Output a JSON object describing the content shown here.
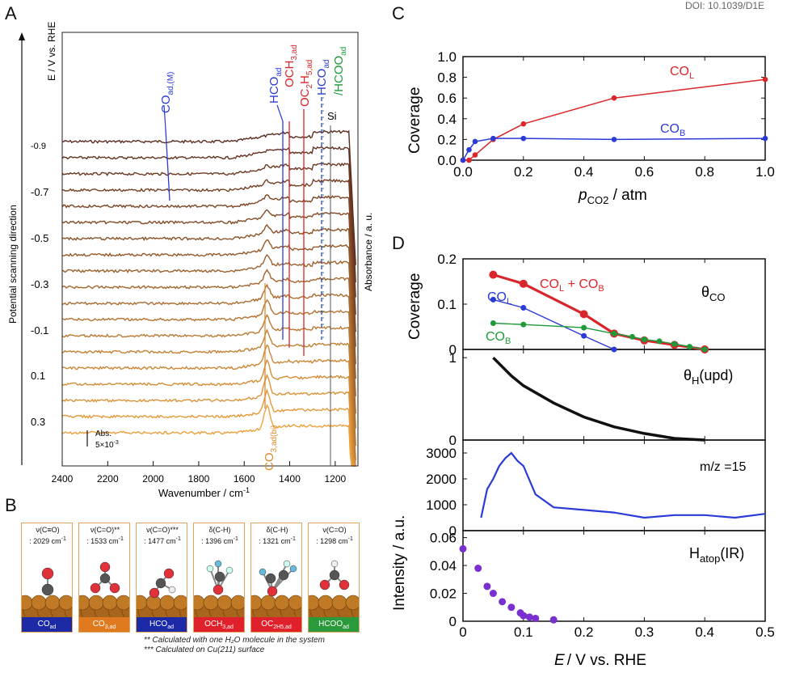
{
  "doi": "DOI: 10.1039/D1E",
  "panel_letters": [
    "A",
    "B",
    "C",
    "D"
  ],
  "colors": {
    "red": "#d9262b",
    "blue": "#2b3bd6",
    "green": "#1f9a3a",
    "purple": "#7a2fd0",
    "orange": "#e08a2c"
  },
  "panelA": {
    "ylabel_left": "E / V vs. RHE",
    "scan_label": "Potential scanning direction",
    "ylabel_right": "Absorbance / a. u.",
    "xlabel": "Wavenumber / cm",
    "xlabel_sup": "-1",
    "potentials": [
      "-0.9",
      "-0.7",
      "-0.5",
      "-0.3",
      "-0.1",
      "0.1",
      "0.3"
    ],
    "scale_bar": {
      "line1": "Abs.",
      "line2": "5×10",
      "line2_sup": "-3"
    },
    "bands": {
      "co": {
        "main": "CO",
        "sub": "ad,(M)"
      },
      "hco1": {
        "main": "HCO",
        "sub": "ad"
      },
      "och3": {
        "main": "OCH",
        "sub1": "3,ad"
      },
      "oc2h5": {
        "main": "OC",
        "sub1": "2",
        "mid": "H",
        "sub2": "5,ad"
      },
      "hco2": {
        "main": "HCO",
        "sub": "ad"
      },
      "hcoo": {
        "main": "/HCOO",
        "sub": "ad"
      },
      "si": "Si",
      "co3": {
        "main": "CO",
        "sub": "3,ad(bi)"
      }
    }
  },
  "panelB": {
    "cards": [
      {
        "vib": "ν(C≡O)",
        "freq": ": 2029 cm",
        "label": "CO",
        "sub": "ad",
        "color": "#1c2aa8"
      },
      {
        "vib": "ν(C=O)**",
        "freq": ": 1533 cm",
        "label": "CO",
        "sub": "3,ad",
        "color": "#e07a1f"
      },
      {
        "vib": "ν(C=O)***",
        "freq": ": 1477 cm",
        "label": "HCO",
        "sub": "ad",
        "color": "#1c2aa8"
      },
      {
        "vib": "δ(C-H)",
        "freq": ": 1396 cm",
        "label": "OCH",
        "sub": "3,ad",
        "color": "#e0202a"
      },
      {
        "vib": "δ(C-H)",
        "freq": ": 1321 cm",
        "label": "OC",
        "sub": "2H5,ad",
        "color": "#e0202a"
      },
      {
        "vib": "ν(C=O)",
        "freq": ": 1298 cm",
        "label": "HCOO",
        "sub": "ad",
        "color": "#2a9a3a"
      }
    ],
    "note1": "** Calculated with one H₂O molecule in the system",
    "note2": "*** Calculated on Cu(211) surface"
  },
  "chart_data": [
    {
      "type": "line",
      "panel": "A",
      "title": "",
      "xlabel": "Wavenumber / cm-1",
      "ylabel": "Absorbance / a. u.",
      "xlim": [
        2400,
        1100
      ],
      "x_ticks": [
        2400,
        2200,
        2000,
        1800,
        1600,
        1400,
        1200
      ],
      "series_count": 19,
      "series_potentials_labeled": [
        "-0.9",
        "-0.7",
        "-0.5",
        "-0.3",
        "-0.1",
        "0.1",
        "0.3"
      ],
      "band_positions_cm": {
        "CO_ad_M": 1950,
        "HCO_ad_1": 1420,
        "OCH3_ad": 1396,
        "OC2H5_ad": 1340,
        "HCO_ad_2": 1260,
        "Si": 1230,
        "CO3_ad_bi": 1500
      }
    },
    {
      "type": "line",
      "panel": "C",
      "xlabel": "p_CO2 / atm",
      "ylabel": "Coverage",
      "xlim": [
        0,
        1.0
      ],
      "ylim": [
        0,
        1.0
      ],
      "x_ticks": [
        "0.0",
        "0.2",
        "0.4",
        "0.6",
        "0.8",
        "1.0"
      ],
      "y_ticks": [
        "0.0",
        "0.2",
        "0.4",
        "0.6",
        "0.8",
        "1.0"
      ],
      "series": [
        {
          "name": "CO_L",
          "label": "CO",
          "sub": "L",
          "color": "#d9262b",
          "x": [
            0.0,
            0.02,
            0.04,
            0.1,
            0.2,
            0.5,
            1.0
          ],
          "values": [
            0.0,
            0.0,
            0.05,
            0.2,
            0.35,
            0.6,
            0.78
          ]
        },
        {
          "name": "CO_B",
          "label": "CO",
          "sub": "B",
          "color": "#2b3bd6",
          "x": [
            0.0,
            0.02,
            0.04,
            0.1,
            0.2,
            0.5,
            1.0
          ],
          "values": [
            0.0,
            0.1,
            0.18,
            0.21,
            0.21,
            0.2,
            0.21
          ]
        }
      ]
    },
    {
      "type": "line",
      "panel": "D1",
      "ylabel": "Coverage",
      "label": "θ",
      "label_sub": "CO",
      "xlim": [
        0,
        0.5
      ],
      "ylim": [
        0,
        0.2
      ],
      "y_ticks": [
        "0.2",
        "0.1",
        "0"
      ],
      "series": [
        {
          "name": "CO_L + CO_B",
          "label": "CO",
          "sub": "L",
          "label2": " + CO",
          "sub2": "B",
          "color": "#d9262b",
          "x": [
            0.05,
            0.1,
            0.2,
            0.25,
            0.3,
            0.35,
            0.4
          ],
          "values": [
            0.165,
            0.145,
            0.078,
            0.035,
            0.02,
            0.01,
            0.0
          ]
        },
        {
          "name": "CO_L",
          "label": "CO",
          "sub": "L",
          "color": "#2b3bd6",
          "x": [
            0.05,
            0.1,
            0.2,
            0.25
          ],
          "values": [
            0.11,
            0.092,
            0.03,
            0.0
          ]
        },
        {
          "name": "CO_B",
          "label": "CO",
          "sub": "B",
          "color": "#1f9a3a",
          "x": [
            0.05,
            0.1,
            0.2,
            0.25,
            0.28,
            0.3,
            0.325,
            0.35,
            0.375,
            0.4
          ],
          "values": [
            0.058,
            0.055,
            0.048,
            0.035,
            0.028,
            0.022,
            0.018,
            0.012,
            0.006,
            0.0
          ]
        }
      ]
    },
    {
      "type": "line",
      "panel": "D2",
      "label": "θ",
      "label_sub": "H",
      "label_suffix": "(upd)",
      "xlim": [
        0,
        0.5
      ],
      "ylim": [
        0,
        1.1
      ],
      "y_ticks": [
        "1",
        "0"
      ],
      "series": [
        {
          "name": "theta_H_upd",
          "color": "#111111",
          "x": [
            0.05,
            0.08,
            0.1,
            0.15,
            0.2,
            0.25,
            0.3,
            0.35,
            0.4
          ],
          "values": [
            1.0,
            0.78,
            0.66,
            0.45,
            0.28,
            0.16,
            0.08,
            0.02,
            0.0
          ]
        }
      ]
    },
    {
      "type": "line",
      "panel": "D3",
      "ylabel": "Intensity / a.u.",
      "label": "m/z =15",
      "xlim": [
        0,
        0.5
      ],
      "ylim": [
        0,
        3500
      ],
      "y_ticks": [
        "3000",
        "2000",
        "1000",
        "0"
      ],
      "series": [
        {
          "name": "m/z=15",
          "color": "#2b3bd6",
          "x": [
            0.03,
            0.04,
            0.05,
            0.06,
            0.07,
            0.08,
            0.09,
            0.1,
            0.12,
            0.15,
            0.2,
            0.25,
            0.3,
            0.35,
            0.4,
            0.45,
            0.5
          ],
          "values": [
            500,
            1600,
            2000,
            2500,
            2800,
            3000,
            2700,
            2500,
            1400,
            900,
            800,
            700,
            500,
            600,
            600,
            500,
            650
          ]
        }
      ]
    },
    {
      "type": "scatter",
      "panel": "D4",
      "label": "H",
      "label_sub": "atop",
      "label_suffix": "(IR)",
      "xlabel": "E / V vs. RHE",
      "xlim": [
        0,
        0.5
      ],
      "ylim": [
        0,
        0.065
      ],
      "x_ticks": [
        "0",
        "0.1",
        "0.2",
        "0.3",
        "0.4",
        "0.5"
      ],
      "y_ticks": [
        "0.06",
        "0.04",
        "0.02",
        "0"
      ],
      "series": [
        {
          "name": "H_atop",
          "color": "#7a2fd0",
          "x": [
            0.0,
            0.025,
            0.04,
            0.05,
            0.065,
            0.08,
            0.095,
            0.1,
            0.11,
            0.12,
            0.15
          ],
          "values": [
            0.052,
            0.038,
            0.025,
            0.02,
            0.014,
            0.01,
            0.006,
            0.004,
            0.003,
            0.002,
            0.001
          ]
        }
      ]
    }
  ]
}
